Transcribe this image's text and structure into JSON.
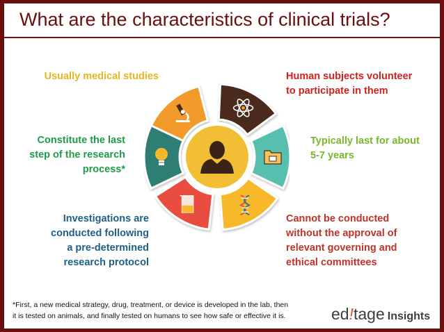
{
  "title": "What are the characteristics of clinical trials?",
  "labels": {
    "usually": "Usually medical studies",
    "human_1": "Human subjects volunteer",
    "human_2": "to participate in them",
    "constitute_1": "Constitute the last",
    "constitute_2": "step of the research",
    "constitute_3": "process*",
    "typically_1": "Typically last for about",
    "typically_2": "5-7 years",
    "investigations_1": "Investigations are",
    "investigations_2": "conducted following",
    "investigations_3": "a pre-determined",
    "investigations_4": "research protocol",
    "cannot_1": "Cannot be conducted",
    "cannot_2": "without the approval of",
    "cannot_3": "relevant governing and",
    "cannot_4": "ethical committees"
  },
  "footnote_1": "*First, a new medical strategy, drug, treatment, or device is developed in the lab, then",
  "footnote_2": "it is tested on animals, and finally tested on humans to see how safe or effective it is.",
  "logo": {
    "brand_pre": "ed",
    "brand_i": "!",
    "brand_post": "tage",
    "insights": "Insights"
  },
  "colors": {
    "background": "#6b0e0e",
    "title": "#6b0e0e",
    "usually": "#e8b51f",
    "human": "#d0211c",
    "constitute": "#1f9b4b",
    "typically": "#78b82a",
    "investigations": "#1e5f8a",
    "cannot": "#c0322a",
    "segment_orange": "#f39b2b",
    "segment_brown": "#4a2a1f",
    "segment_teal": "#57bfae",
    "segment_yellow": "#f7b82a",
    "segment_red": "#e94e3f",
    "segment_green": "#2e7e73",
    "center": "#f2be34"
  },
  "icons": [
    "microscope-icon",
    "atom-icon",
    "folder-icon",
    "dna-icon",
    "beaker-icon",
    "lightbulb-icon",
    "person-icon"
  ]
}
